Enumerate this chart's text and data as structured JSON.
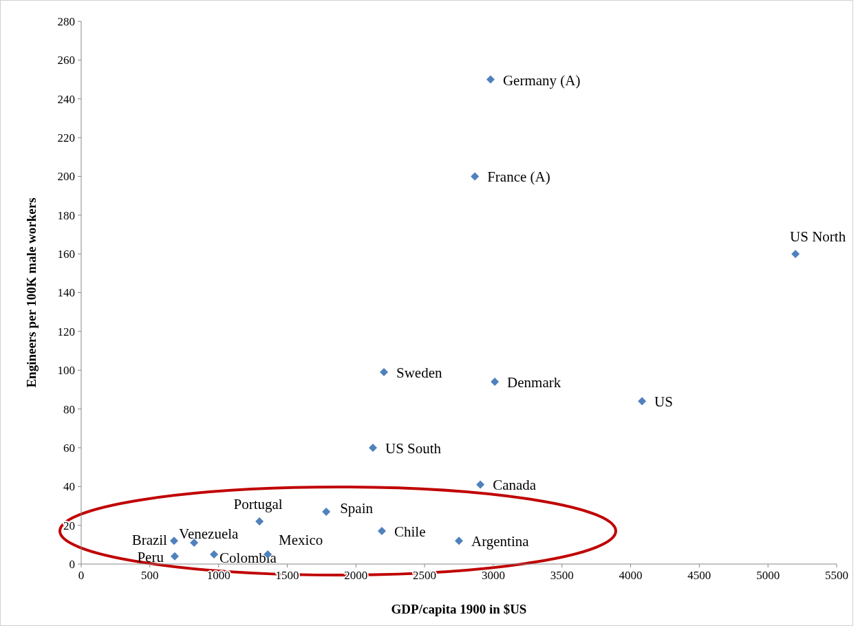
{
  "chart_data": {
    "type": "scatter",
    "xlabel": "GDP/capita 1900 in  $US",
    "ylabel": "Engineers per 100K male workers",
    "xlim": [
      0,
      5500
    ],
    "xticks": [
      0,
      500,
      1000,
      1500,
      2000,
      2500,
      3000,
      3500,
      4000,
      4500,
      5000,
      5500
    ],
    "ylim": [
      0,
      280
    ],
    "yticks": [
      0,
      20,
      40,
      60,
      80,
      100,
      120,
      140,
      160,
      180,
      200,
      220,
      240,
      260,
      280
    ],
    "grid": false,
    "marker": "diamond",
    "series": [
      {
        "color": "#4f81bd",
        "x": [
          2980,
          2866,
          5200,
          2204,
          3011,
          4083,
          2124,
          2906,
          1298,
          1784,
          2189,
          2750,
          676,
          822,
          1358,
          967,
          681
        ],
        "values": [
          250,
          200,
          160,
          99,
          94,
          84,
          60,
          41,
          22,
          27,
          17,
          12,
          12,
          11,
          5,
          5,
          4
        ]
      }
    ],
    "annotations": [
      {
        "text": "Germany (A)",
        "x": 2980,
        "y": 250
      },
      {
        "text": "France (A)",
        "x": 2866,
        "y": 200
      },
      {
        "text": "US North",
        "x": 5200,
        "y": 160
      },
      {
        "text": "Sweden",
        "x": 2204,
        "y": 99
      },
      {
        "text": "Denmark",
        "x": 3011,
        "y": 94
      },
      {
        "text": "US",
        "x": 4083,
        "y": 84
      },
      {
        "text": "US South",
        "x": 2124,
        "y": 60
      },
      {
        "text": "Canada",
        "x": 2906,
        "y": 41
      },
      {
        "text": "Portugal",
        "x": 1298,
        "y": 22
      },
      {
        "text": "Spain",
        "x": 1784,
        "y": 27
      },
      {
        "text": "Chile",
        "x": 2189,
        "y": 17
      },
      {
        "text": "Argentina",
        "x": 2750,
        "y": 12
      },
      {
        "text": "Brazil",
        "x": 676,
        "y": 12
      },
      {
        "text": "Venezuela",
        "x": 822,
        "y": 11
      },
      {
        "text": "Mexico",
        "x": 1358,
        "y": 5
      },
      {
        "text": "Colombia",
        "x": 967,
        "y": 5
      },
      {
        "text": "Peru",
        "x": 681,
        "y": 4
      }
    ]
  }
}
